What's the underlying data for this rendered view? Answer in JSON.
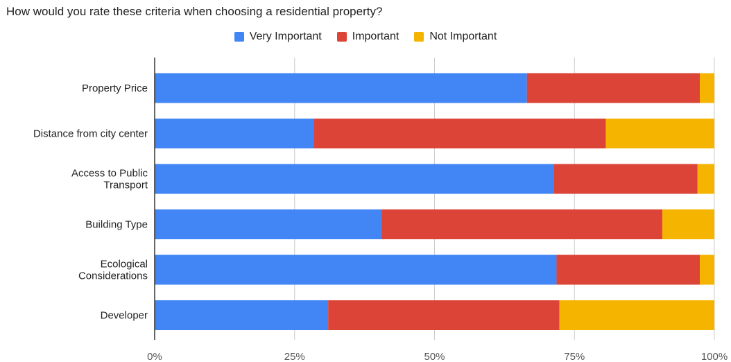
{
  "chart_data": {
    "type": "bar",
    "orientation": "horizontal",
    "stacked": "100%",
    "title": "How would you rate these criteria when choosing a residential property?",
    "categories": [
      [
        "Property Price"
      ],
      [
        "Distance from city center"
      ],
      [
        "Access to Public",
        "Transport"
      ],
      [
        "Building Type"
      ],
      [
        "Ecological",
        "Considerations"
      ],
      [
        "Developer"
      ]
    ],
    "series": [
      {
        "name": "Very Important",
        "color": "#4285f4",
        "values": [
          66.5,
          28.5,
          71.3,
          40.5,
          71.8,
          31.0
        ]
      },
      {
        "name": "Important",
        "color": "#db4437",
        "values": [
          30.9,
          52.1,
          25.7,
          50.2,
          25.6,
          41.3
        ]
      },
      {
        "name": "Not Important",
        "color": "#f4b400",
        "values": [
          2.6,
          19.4,
          3.0,
          9.3,
          2.6,
          27.7
        ]
      }
    ],
    "x_ticks": [
      "0%",
      "25%",
      "50%",
      "75%",
      "100%"
    ],
    "xlim": [
      0,
      100
    ],
    "grid": true,
    "legend_position": "top"
  }
}
